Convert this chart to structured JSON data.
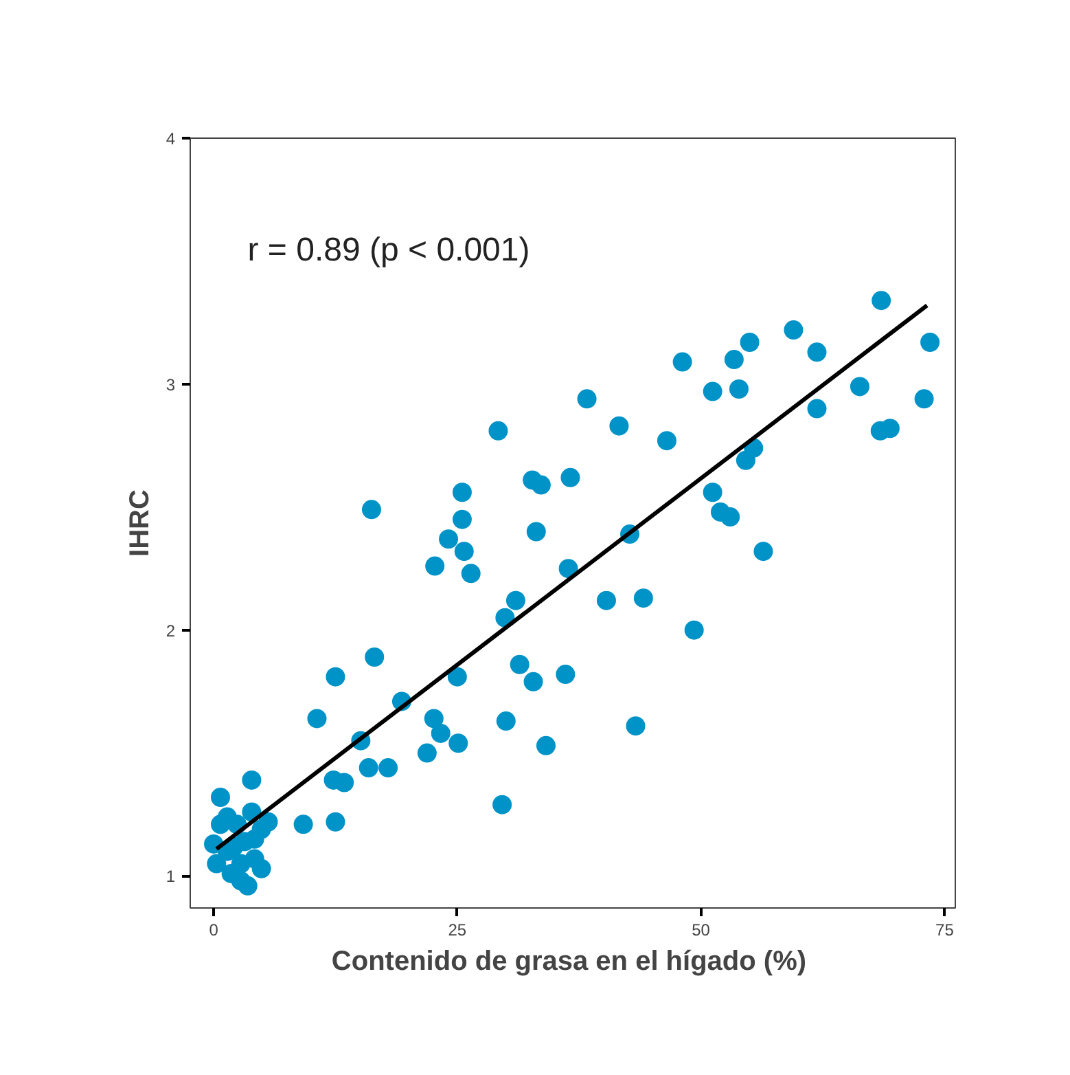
{
  "chart_data": {
    "type": "scatter",
    "xlabel": "Contenido de grasa en el hígado  (%)",
    "ylabel": "IHRC",
    "annotations": [
      "r = 0.89  (p < 0.001)"
    ],
    "xlim": [
      -2.4,
      76.1
    ],
    "ylim": [
      0.87,
      4.0
    ],
    "xticks": [
      0,
      25,
      50,
      75
    ],
    "yticks": [
      1,
      2,
      3,
      4
    ],
    "grid": false,
    "marker": "circle",
    "series": [
      {
        "color": "#0093c8",
        "x": [
          0.7,
          0.0,
          0.3,
          0.7,
          1.4,
          1.8,
          2.4,
          2.8,
          3.2,
          3.5,
          3.9,
          3.9,
          4.2,
          4.9,
          4.9,
          5.6,
          1.4,
          2.1,
          4.2,
          2.8,
          9.2,
          12.5,
          10.6,
          12.3,
          13.4,
          12.5,
          15.1,
          15.9,
          17.9,
          16.5,
          16.2,
          19.3,
          21.9,
          22.6,
          23.3,
          25.1,
          22.7,
          24.1,
          25.5,
          25.5,
          25.7,
          26.4,
          25.0,
          29.2,
          29.6,
          30.0,
          29.9,
          31.0,
          31.4,
          32.7,
          33.6,
          33.1,
          32.8,
          34.1,
          36.1,
          36.4,
          36.6,
          38.3,
          40.3,
          41.6,
          42.7,
          44.1,
          43.3,
          49.3,
          46.5,
          48.1,
          51.2,
          51.2,
          52.0,
          53.0,
          53.4,
          53.9,
          55.0,
          54.6,
          55.4,
          56.4,
          59.5,
          61.9,
          61.9,
          66.3,
          68.4,
          69.4,
          68.5,
          72.9,
          73.5
        ],
        "values": [
          1.32,
          1.13,
          1.05,
          1.21,
          1.1,
          1.01,
          1.21,
          0.98,
          1.14,
          0.96,
          1.39,
          1.26,
          1.07,
          1.19,
          1.03,
          1.22,
          1.24,
          1.12,
          1.15,
          1.05,
          1.21,
          1.22,
          1.64,
          1.39,
          1.38,
          1.81,
          1.55,
          1.44,
          1.44,
          1.89,
          2.49,
          1.71,
          1.5,
          1.64,
          1.58,
          1.54,
          2.26,
          2.37,
          2.56,
          2.45,
          2.32,
          2.23,
          1.81,
          2.81,
          1.29,
          1.63,
          2.05,
          2.12,
          1.86,
          2.61,
          2.59,
          2.4,
          1.79,
          1.53,
          1.82,
          2.25,
          2.62,
          2.94,
          2.12,
          2.83,
          2.39,
          2.13,
          1.61,
          2.0,
          2.77,
          3.09,
          2.97,
          2.56,
          2.48,
          2.46,
          3.1,
          2.98,
          3.17,
          2.69,
          2.74,
          2.32,
          3.22,
          3.13,
          2.9,
          2.99,
          2.81,
          2.82,
          3.34,
          2.94,
          3.17
        ]
      },
      {
        "type": "line",
        "color": "#000000",
        "x": [
          0.3,
          73.2
        ],
        "values": [
          1.11,
          3.32
        ],
        "marker": "none",
        "line_style": "solid"
      }
    ]
  }
}
